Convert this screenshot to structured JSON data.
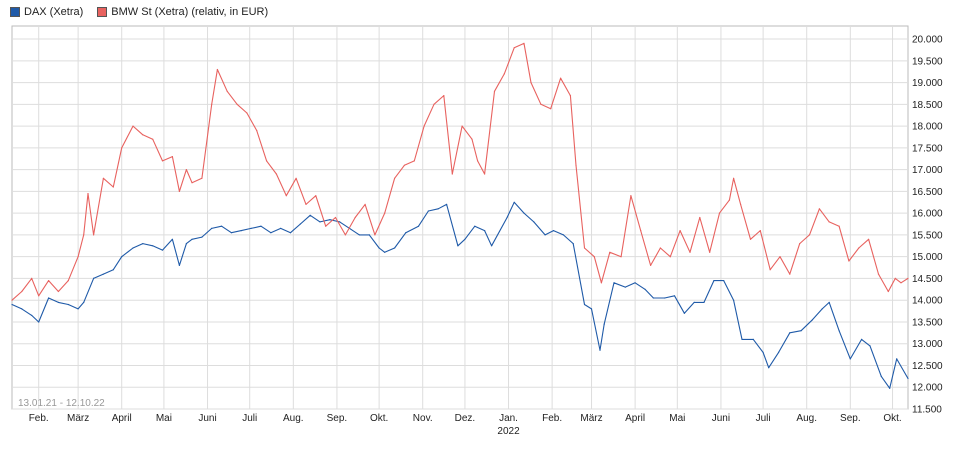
{
  "legend": {
    "dax_label": "DAX (Xetra)",
    "bmw_label": "BMW St (Xetra) (relativ, in EUR)"
  },
  "chart_data": {
    "type": "line",
    "date_range_label": "13.01.21 - 12.10.22",
    "x_tick_labels": [
      "Feb.",
      "März",
      "April",
      "Mai",
      "Juni",
      "Juli",
      "Aug.",
      "Sep.",
      "Okt.",
      "Nov.",
      "Dez.",
      "Jan.",
      "Feb.",
      "März",
      "April",
      "Mai",
      "Juni",
      "Juli",
      "Aug.",
      "Sep.",
      "Okt."
    ],
    "x_year_label": "2022",
    "y_tick_labels": [
      "11.500",
      "12.000",
      "12.500",
      "13.000",
      "13.500",
      "14.000",
      "14.500",
      "15.000",
      "15.500",
      "16.000",
      "16.500",
      "17.000",
      "17.500",
      "18.000",
      "18.500",
      "19.000",
      "19.500",
      "20.000"
    ],
    "ylim": [
      11500,
      20300
    ],
    "grid": true,
    "legend_position": "top-left",
    "colors": {
      "dax": "#1f5aa8",
      "bmw": "#e8625f",
      "grid": "#dddddd",
      "border": "#bbbbbb"
    },
    "series": [
      {
        "name": "DAX (Xetra)",
        "key": "dax",
        "points": [
          [
            "2021-01-13",
            13900
          ],
          [
            "2021-01-20",
            13800
          ],
          [
            "2021-01-27",
            13650
          ],
          [
            "2021-02-01",
            13500
          ],
          [
            "2021-02-08",
            14050
          ],
          [
            "2021-02-15",
            13950
          ],
          [
            "2021-02-22",
            13900
          ],
          [
            "2021-03-01",
            13800
          ],
          [
            "2021-03-05",
            13950
          ],
          [
            "2021-03-12",
            14500
          ],
          [
            "2021-03-19",
            14600
          ],
          [
            "2021-03-26",
            14700
          ],
          [
            "2021-04-01",
            15000
          ],
          [
            "2021-04-09",
            15200
          ],
          [
            "2021-04-16",
            15300
          ],
          [
            "2021-04-23",
            15250
          ],
          [
            "2021-04-30",
            15150
          ],
          [
            "2021-05-07",
            15400
          ],
          [
            "2021-05-12",
            14800
          ],
          [
            "2021-05-17",
            15300
          ],
          [
            "2021-05-21",
            15400
          ],
          [
            "2021-05-28",
            15450
          ],
          [
            "2021-06-04",
            15650
          ],
          [
            "2021-06-11",
            15700
          ],
          [
            "2021-06-18",
            15550
          ],
          [
            "2021-06-25",
            15600
          ],
          [
            "2021-07-02",
            15650
          ],
          [
            "2021-07-09",
            15700
          ],
          [
            "2021-07-16",
            15550
          ],
          [
            "2021-07-23",
            15650
          ],
          [
            "2021-07-30",
            15550
          ],
          [
            "2021-08-06",
            15750
          ],
          [
            "2021-08-13",
            15950
          ],
          [
            "2021-08-20",
            15800
          ],
          [
            "2021-08-27",
            15850
          ],
          [
            "2021-09-03",
            15800
          ],
          [
            "2021-09-10",
            15650
          ],
          [
            "2021-09-17",
            15500
          ],
          [
            "2021-09-24",
            15500
          ],
          [
            "2021-10-01",
            15200
          ],
          [
            "2021-10-05",
            15100
          ],
          [
            "2021-10-12",
            15200
          ],
          [
            "2021-10-20",
            15550
          ],
          [
            "2021-10-29",
            15700
          ],
          [
            "2021-11-05",
            16050
          ],
          [
            "2021-11-12",
            16100
          ],
          [
            "2021-11-18",
            16200
          ],
          [
            "2021-11-26",
            15250
          ],
          [
            "2021-12-01",
            15400
          ],
          [
            "2021-12-08",
            15700
          ],
          [
            "2021-12-15",
            15600
          ],
          [
            "2021-12-20",
            15250
          ],
          [
            "2021-12-31",
            15900
          ],
          [
            "2022-01-05",
            16250
          ],
          [
            "2022-01-12",
            16000
          ],
          [
            "2022-01-19",
            15800
          ],
          [
            "2022-01-27",
            15500
          ],
          [
            "2022-02-02",
            15600
          ],
          [
            "2022-02-09",
            15500
          ],
          [
            "2022-02-16",
            15300
          ],
          [
            "2022-02-24",
            13900
          ],
          [
            "2022-03-01",
            13800
          ],
          [
            "2022-03-07",
            12850
          ],
          [
            "2022-03-10",
            13450
          ],
          [
            "2022-03-17",
            14400
          ],
          [
            "2022-03-25",
            14300
          ],
          [
            "2022-04-01",
            14400
          ],
          [
            "2022-04-08",
            14250
          ],
          [
            "2022-04-14",
            14050
          ],
          [
            "2022-04-22",
            14050
          ],
          [
            "2022-04-29",
            14100
          ],
          [
            "2022-05-06",
            13700
          ],
          [
            "2022-05-13",
            13950
          ],
          [
            "2022-05-20",
            13950
          ],
          [
            "2022-05-27",
            14450
          ],
          [
            "2022-06-03",
            14450
          ],
          [
            "2022-06-10",
            14000
          ],
          [
            "2022-06-16",
            13100
          ],
          [
            "2022-06-24",
            13100
          ],
          [
            "2022-07-01",
            12800
          ],
          [
            "2022-07-05",
            12450
          ],
          [
            "2022-07-12",
            12800
          ],
          [
            "2022-07-20",
            13250
          ],
          [
            "2022-07-28",
            13300
          ],
          [
            "2022-08-05",
            13550
          ],
          [
            "2022-08-12",
            13800
          ],
          [
            "2022-08-17",
            13950
          ],
          [
            "2022-08-24",
            13300
          ],
          [
            "2022-09-01",
            12650
          ],
          [
            "2022-09-09",
            13100
          ],
          [
            "2022-09-15",
            12950
          ],
          [
            "2022-09-23",
            12250
          ],
          [
            "2022-09-29",
            11975
          ],
          [
            "2022-10-04",
            12650
          ],
          [
            "2022-10-12",
            12200
          ]
        ]
      },
      {
        "name": "BMW St (Xetra) (relativ, in EUR)",
        "key": "bmw",
        "points": [
          [
            "2021-01-13",
            14000
          ],
          [
            "2021-01-20",
            14200
          ],
          [
            "2021-01-27",
            14500
          ],
          [
            "2021-02-01",
            14100
          ],
          [
            "2021-02-08",
            14450
          ],
          [
            "2021-02-15",
            14200
          ],
          [
            "2021-02-22",
            14450
          ],
          [
            "2021-03-01",
            15000
          ],
          [
            "2021-03-05",
            15500
          ],
          [
            "2021-03-08",
            16450
          ],
          [
            "2021-03-12",
            15500
          ],
          [
            "2021-03-19",
            16800
          ],
          [
            "2021-03-26",
            16600
          ],
          [
            "2021-04-01",
            17500
          ],
          [
            "2021-04-09",
            18000
          ],
          [
            "2021-04-16",
            17800
          ],
          [
            "2021-04-23",
            17700
          ],
          [
            "2021-04-30",
            17200
          ],
          [
            "2021-05-07",
            17300
          ],
          [
            "2021-05-12",
            16500
          ],
          [
            "2021-05-17",
            17000
          ],
          [
            "2021-05-21",
            16700
          ],
          [
            "2021-05-28",
            16800
          ],
          [
            "2021-06-04",
            18500
          ],
          [
            "2021-06-08",
            19300
          ],
          [
            "2021-06-15",
            18800
          ],
          [
            "2021-06-22",
            18500
          ],
          [
            "2021-06-29",
            18300
          ],
          [
            "2021-07-06",
            17900
          ],
          [
            "2021-07-13",
            17200
          ],
          [
            "2021-07-20",
            16900
          ],
          [
            "2021-07-27",
            16400
          ],
          [
            "2021-08-03",
            16800
          ],
          [
            "2021-08-10",
            16200
          ],
          [
            "2021-08-17",
            16400
          ],
          [
            "2021-08-24",
            15700
          ],
          [
            "2021-08-31",
            15900
          ],
          [
            "2021-09-07",
            15500
          ],
          [
            "2021-09-14",
            15900
          ],
          [
            "2021-09-21",
            16200
          ],
          [
            "2021-09-28",
            15500
          ],
          [
            "2021-10-05",
            16000
          ],
          [
            "2021-10-12",
            16800
          ],
          [
            "2021-10-19",
            17100
          ],
          [
            "2021-10-26",
            17200
          ],
          [
            "2021-11-02",
            18000
          ],
          [
            "2021-11-09",
            18500
          ],
          [
            "2021-11-16",
            18700
          ],
          [
            "2021-11-22",
            16900
          ],
          [
            "2021-11-29",
            18000
          ],
          [
            "2021-12-06",
            17700
          ],
          [
            "2021-12-10",
            17200
          ],
          [
            "2021-12-15",
            16900
          ],
          [
            "2021-12-22",
            18800
          ],
          [
            "2021-12-29",
            19200
          ],
          [
            "2022-01-05",
            19800
          ],
          [
            "2022-01-12",
            19900
          ],
          [
            "2022-01-17",
            19000
          ],
          [
            "2022-01-24",
            18500
          ],
          [
            "2022-01-31",
            18400
          ],
          [
            "2022-02-07",
            19100
          ],
          [
            "2022-02-14",
            18700
          ],
          [
            "2022-02-18",
            17100
          ],
          [
            "2022-02-24",
            15200
          ],
          [
            "2022-03-03",
            15000
          ],
          [
            "2022-03-08",
            14400
          ],
          [
            "2022-03-14",
            15100
          ],
          [
            "2022-03-22",
            15000
          ],
          [
            "2022-03-29",
            16400
          ],
          [
            "2022-04-05",
            15600
          ],
          [
            "2022-04-12",
            14800
          ],
          [
            "2022-04-19",
            15200
          ],
          [
            "2022-04-26",
            15000
          ],
          [
            "2022-05-03",
            15600
          ],
          [
            "2022-05-10",
            15100
          ],
          [
            "2022-05-17",
            15900
          ],
          [
            "2022-05-24",
            15100
          ],
          [
            "2022-05-31",
            16000
          ],
          [
            "2022-06-07",
            16300
          ],
          [
            "2022-06-10",
            16800
          ],
          [
            "2022-06-15",
            16200
          ],
          [
            "2022-06-22",
            15400
          ],
          [
            "2022-06-29",
            15600
          ],
          [
            "2022-07-06",
            14700
          ],
          [
            "2022-07-13",
            15000
          ],
          [
            "2022-07-20",
            14600
          ],
          [
            "2022-07-27",
            15300
          ],
          [
            "2022-08-03",
            15500
          ],
          [
            "2022-08-10",
            16100
          ],
          [
            "2022-08-17",
            15800
          ],
          [
            "2022-08-24",
            15700
          ],
          [
            "2022-08-31",
            14900
          ],
          [
            "2022-09-07",
            15200
          ],
          [
            "2022-09-14",
            15400
          ],
          [
            "2022-09-21",
            14600
          ],
          [
            "2022-09-28",
            14200
          ],
          [
            "2022-10-03",
            14500
          ],
          [
            "2022-10-07",
            14400
          ],
          [
            "2022-10-12",
            14500
          ]
        ]
      }
    ]
  }
}
